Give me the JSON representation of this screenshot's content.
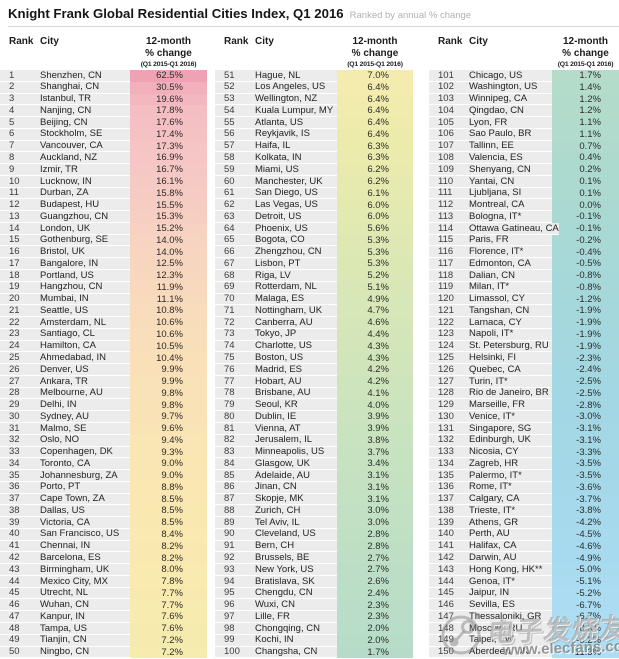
{
  "chart_data": {
    "type": "table",
    "title": "Knight Frank Global Residential Cities Index, Q1 2016",
    "subtitle": "Ranked by annual % change",
    "column_headers": {
      "rank": "Rank",
      "city": "City",
      "change_lines": [
        "12-month",
        "% change",
        "(Q1 2015-Q1 2016)"
      ]
    },
    "rows": [
      [
        1,
        "Shenzhen, CN",
        "62.5%"
      ],
      [
        2,
        "Shanghai, CN",
        "30.5%"
      ],
      [
        3,
        "Istanbul, TR",
        "19.6%"
      ],
      [
        4,
        "Nanjing, CN",
        "17.8%"
      ],
      [
        5,
        "Beijing, CN",
        "17.6%"
      ],
      [
        6,
        "Stockholm, SE",
        "17.4%"
      ],
      [
        7,
        "Vancouver, CA",
        "17.3%"
      ],
      [
        8,
        "Auckland, NZ",
        "16.9%"
      ],
      [
        9,
        "Izmir, TR",
        "16.7%"
      ],
      [
        10,
        "Lucknow, IN",
        "16.1%"
      ],
      [
        11,
        "Durban, ZA",
        "15.8%"
      ],
      [
        12,
        "Budapest, HU",
        "15.5%"
      ],
      [
        13,
        "Guangzhou, CN",
        "15.3%"
      ],
      [
        14,
        "London, UK",
        "15.2%"
      ],
      [
        15,
        "Gothenburg, SE",
        "14.0%"
      ],
      [
        16,
        "Bristol, UK",
        "14.0%"
      ],
      [
        17,
        "Bangalore, IN",
        "12.5%"
      ],
      [
        18,
        "Portland, US",
        "12.3%"
      ],
      [
        19,
        "Hangzhou, CN",
        "11.9%"
      ],
      [
        20,
        "Mumbai, IN",
        "11.1%"
      ],
      [
        21,
        "Seattle, US",
        "10.8%"
      ],
      [
        22,
        "Amsterdam, NL",
        "10.6%"
      ],
      [
        23,
        "Santiago, CL",
        "10.6%"
      ],
      [
        24,
        "Hamilton, CA",
        "10.5%"
      ],
      [
        25,
        "Ahmedabad, IN",
        "10.4%"
      ],
      [
        26,
        "Denver, US",
        "9.9%"
      ],
      [
        27,
        "Ankara, TR",
        "9.9%"
      ],
      [
        28,
        "Melbourne, AU",
        "9.8%"
      ],
      [
        29,
        "Delhi, IN",
        "9.8%"
      ],
      [
        30,
        "Sydney, AU",
        "9.7%"
      ],
      [
        31,
        "Malmo, SE",
        "9.6%"
      ],
      [
        32,
        "Oslo, NO",
        "9.4%"
      ],
      [
        33,
        "Copenhagen, DK",
        "9.3%"
      ],
      [
        34,
        "Toronto, CA",
        "9.0%"
      ],
      [
        35,
        "Johannesburg, ZA",
        "9.0%"
      ],
      [
        36,
        "Porto, PT",
        "8.8%"
      ],
      [
        37,
        "Cape Town, ZA",
        "8.5%"
      ],
      [
        38,
        "Dallas, US",
        "8.5%"
      ],
      [
        39,
        "Victoria, CA",
        "8.5%"
      ],
      [
        40,
        "San Francisco, US",
        "8.4%"
      ],
      [
        41,
        "Chennai, IN",
        "8.2%"
      ],
      [
        42,
        "Barcelona, ES",
        "8.2%"
      ],
      [
        43,
        "Birmingham, UK",
        "8.0%"
      ],
      [
        44,
        "Mexico City, MX",
        "7.8%"
      ],
      [
        45,
        "Utrecht, NL",
        "7.7%"
      ],
      [
        46,
        "Wuhan, CN",
        "7.7%"
      ],
      [
        47,
        "Kanpur, IN",
        "7.6%"
      ],
      [
        48,
        "Tampa, US",
        "7.6%"
      ],
      [
        49,
        "Tianjin, CN",
        "7.2%"
      ],
      [
        50,
        "Ningbo, CN",
        "7.2%"
      ],
      [
        51,
        "Hague, NL",
        "7.0%"
      ],
      [
        52,
        "Los Angeles, US",
        "6.4%"
      ],
      [
        53,
        "Wellington, NZ",
        "6.4%"
      ],
      [
        54,
        "Kuala Lumpur, MY",
        "6.4%"
      ],
      [
        55,
        "Atlanta, US",
        "6.4%"
      ],
      [
        56,
        "Reykjavik, IS",
        "6.4%"
      ],
      [
        57,
        "Haifa, IL",
        "6.3%"
      ],
      [
        58,
        "Kolkata, IN",
        "6.3%"
      ],
      [
        59,
        "Miami, US",
        "6.2%"
      ],
      [
        60,
        "Manchester, UK",
        "6.2%"
      ],
      [
        61,
        "San Diego, US",
        "6.1%"
      ],
      [
        62,
        "Las Vegas, US",
        "6.0%"
      ],
      [
        63,
        "Detroit, US",
        "6.0%"
      ],
      [
        64,
        "Phoenix, US",
        "5.6%"
      ],
      [
        65,
        "Bogota, CO",
        "5.3%"
      ],
      [
        66,
        "Zhengzhou, CN",
        "5.3%"
      ],
      [
        67,
        "Lisbon, PT",
        "5.3%"
      ],
      [
        68,
        "Riga, LV",
        "5.2%"
      ],
      [
        69,
        "Rotterdam, NL",
        "5.1%"
      ],
      [
        70,
        "Malaga, ES",
        "4.9%"
      ],
      [
        71,
        "Nottingham, UK",
        "4.7%"
      ],
      [
        72,
        "Canberra, AU",
        "4.6%"
      ],
      [
        73,
        "Tokyo, JP",
        "4.4%"
      ],
      [
        74,
        "Charlotte, US",
        "4.3%"
      ],
      [
        75,
        "Boston, US",
        "4.3%"
      ],
      [
        76,
        "Madrid, ES",
        "4.2%"
      ],
      [
        77,
        "Hobart, AU",
        "4.2%"
      ],
      [
        78,
        "Brisbane, AU",
        "4.1%"
      ],
      [
        79,
        "Seoul, KR",
        "4.0%"
      ],
      [
        80,
        "Dublin, IE",
        "3.9%"
      ],
      [
        81,
        "Vienna, AT",
        "3.9%"
      ],
      [
        82,
        "Jerusalem, IL",
        "3.8%"
      ],
      [
        83,
        "Minneapolis, US",
        "3.7%"
      ],
      [
        84,
        "Glasgow, UK",
        "3.4%"
      ],
      [
        85,
        "Adelaide, AU",
        "3.1%"
      ],
      [
        86,
        "Jinan, CN",
        "3.1%"
      ],
      [
        87,
        "Skopje, MK",
        "3.1%"
      ],
      [
        88,
        "Zurich, CH",
        "3.0%"
      ],
      [
        89,
        "Tel Aviv, IL",
        "3.0%"
      ],
      [
        90,
        "Cleveland, US",
        "2.8%"
      ],
      [
        91,
        "Bern, CH",
        "2.8%"
      ],
      [
        92,
        "Brussels, BE",
        "2.7%"
      ],
      [
        93,
        "New York, US",
        "2.7%"
      ],
      [
        94,
        "Bratislava, SK",
        "2.6%"
      ],
      [
        95,
        "Chengdu, CN",
        "2.4%"
      ],
      [
        96,
        "Wuxi, CN",
        "2.3%"
      ],
      [
        97,
        "Lille, FR",
        "2.3%"
      ],
      [
        98,
        "Chongqing, CN",
        "2.0%"
      ],
      [
        99,
        "Kochi, IN",
        "2.0%"
      ],
      [
        100,
        "Changsha, CN",
        "1.7%"
      ],
      [
        101,
        "Chicago, US",
        "1.7%"
      ],
      [
        102,
        "Washington, US",
        "1.4%"
      ],
      [
        103,
        "Winnipeg, CA",
        "1.2%"
      ],
      [
        104,
        "Qingdao, CN",
        "1.2%"
      ],
      [
        105,
        "Lyon, FR",
        "1.1%"
      ],
      [
        106,
        "Sao Paulo, BR",
        "1.1%"
      ],
      [
        107,
        "Tallinn, EE",
        "0.7%"
      ],
      [
        108,
        "Valencia, ES",
        "0.4%"
      ],
      [
        109,
        "Shenyang, CN",
        "0.2%"
      ],
      [
        110,
        "Yantai, CN",
        "0.1%"
      ],
      [
        111,
        "Ljubljana, SI",
        "0.1%"
      ],
      [
        112,
        "Montreal, CA",
        "0.0%"
      ],
      [
        113,
        "Bologna, IT*",
        "-0.1%"
      ],
      [
        114,
        "Ottawa Gatineau, CA",
        "-0.1%"
      ],
      [
        115,
        "Paris, FR",
        "-0.2%"
      ],
      [
        116,
        "Florence, IT*",
        "-0.4%"
      ],
      [
        117,
        "Edmonton, CA",
        "-0.5%"
      ],
      [
        118,
        "Dalian, CN",
        "-0.8%"
      ],
      [
        119,
        "Milan, IT*",
        "-0.8%"
      ],
      [
        120,
        "Limassol, CY",
        "-1.2%"
      ],
      [
        121,
        "Tangshan, CN",
        "-1.9%"
      ],
      [
        122,
        "Larnaca, CY",
        "-1.9%"
      ],
      [
        123,
        "Napoli, IT*",
        "-1.9%"
      ],
      [
        124,
        "St. Petersburg, RU",
        "-1.9%"
      ],
      [
        125,
        "Helsinki, FI",
        "-2.3%"
      ],
      [
        126,
        "Quebec, CA",
        "-2.4%"
      ],
      [
        127,
        "Turin, IT*",
        "-2.5%"
      ],
      [
        128,
        "Rio de Janeiro, BR",
        "-2.5%"
      ],
      [
        129,
        "Marseille, FR",
        "-2.8%"
      ],
      [
        130,
        "Venice, IT*",
        "-3.0%"
      ],
      [
        131,
        "Singapore, SG",
        "-3.1%"
      ],
      [
        132,
        "Edinburgh, UK",
        "-3.1%"
      ],
      [
        133,
        "Nicosia, CY",
        "-3.3%"
      ],
      [
        134,
        "Zagreb, HR",
        "-3.5%"
      ],
      [
        135,
        "Palermo, IT*",
        "-3.5%"
      ],
      [
        136,
        "Rome, IT*",
        "-3.6%"
      ],
      [
        137,
        "Calgary, CA",
        "-3.7%"
      ],
      [
        138,
        "Trieste, IT*",
        "-3.8%"
      ],
      [
        139,
        "Athens, GR",
        "-4.2%"
      ],
      [
        140,
        "Perth, AU",
        "-4.5%"
      ],
      [
        141,
        "Halifax, CA",
        "-4.6%"
      ],
      [
        142,
        "Darwin, AU",
        "-4.9%"
      ],
      [
        143,
        "Hong Kong, HK**",
        "-5.0%"
      ],
      [
        144,
        "Genoa, IT*",
        "-5.1%"
      ],
      [
        145,
        "Jaipur, IN",
        "-5.2%"
      ],
      [
        146,
        "Sevilla, ES",
        "-6.7%"
      ],
      [
        147,
        "Thessaloniki, GR",
        "-6.7%"
      ],
      [
        148,
        "Moscow, RU",
        "-8.3%"
      ],
      [
        149,
        "Taipei, TW",
        "-9.2%"
      ],
      [
        150,
        "Aberdeen, UK",
        "-11.3%"
      ]
    ],
    "layout_hints": {
      "columns_of_rows": 3,
      "rows_per_column": 50,
      "value_cell_heatmap": "red (top) through yellow and green to blue (bottom)"
    }
  },
  "heatmap_stops": [
    [
      1,
      "#efa2b4"
    ],
    [
      2,
      "#f2b0bc"
    ],
    [
      4,
      "#f4bec3"
    ],
    [
      8,
      "#f5c6c5"
    ],
    [
      12,
      "#f6cdc3"
    ],
    [
      16,
      "#f7d5c0"
    ],
    [
      22,
      "#f8ddbb"
    ],
    [
      28,
      "#f9e2b7"
    ],
    [
      36,
      "#fae7b2"
    ],
    [
      44,
      "#f9eaaf"
    ],
    [
      51,
      "#f4ecae"
    ],
    [
      57,
      "#ebebac"
    ],
    [
      63,
      "#e2e9b1"
    ],
    [
      70,
      "#d8e7b7"
    ],
    [
      78,
      "#cde4bd"
    ],
    [
      86,
      "#c4e1c2"
    ],
    [
      94,
      "#bcdec6"
    ],
    [
      101,
      "#b5dcca"
    ],
    [
      108,
      "#aedace"
    ],
    [
      114,
      "#a9d9d4"
    ],
    [
      120,
      "#a5d8db"
    ],
    [
      127,
      "#a3d7e2"
    ],
    [
      134,
      "#a4d8e8"
    ],
    [
      141,
      "#a7daee"
    ],
    [
      150,
      "#afdef4"
    ]
  ],
  "colors": {
    "row_stripe": "#ececec",
    "rule": "#d6d6d6",
    "subtitle_gray": "#b1b1b1"
  },
  "watermark": {
    "brand": "电子发烧友",
    "site": "www.elecfans.com"
  }
}
